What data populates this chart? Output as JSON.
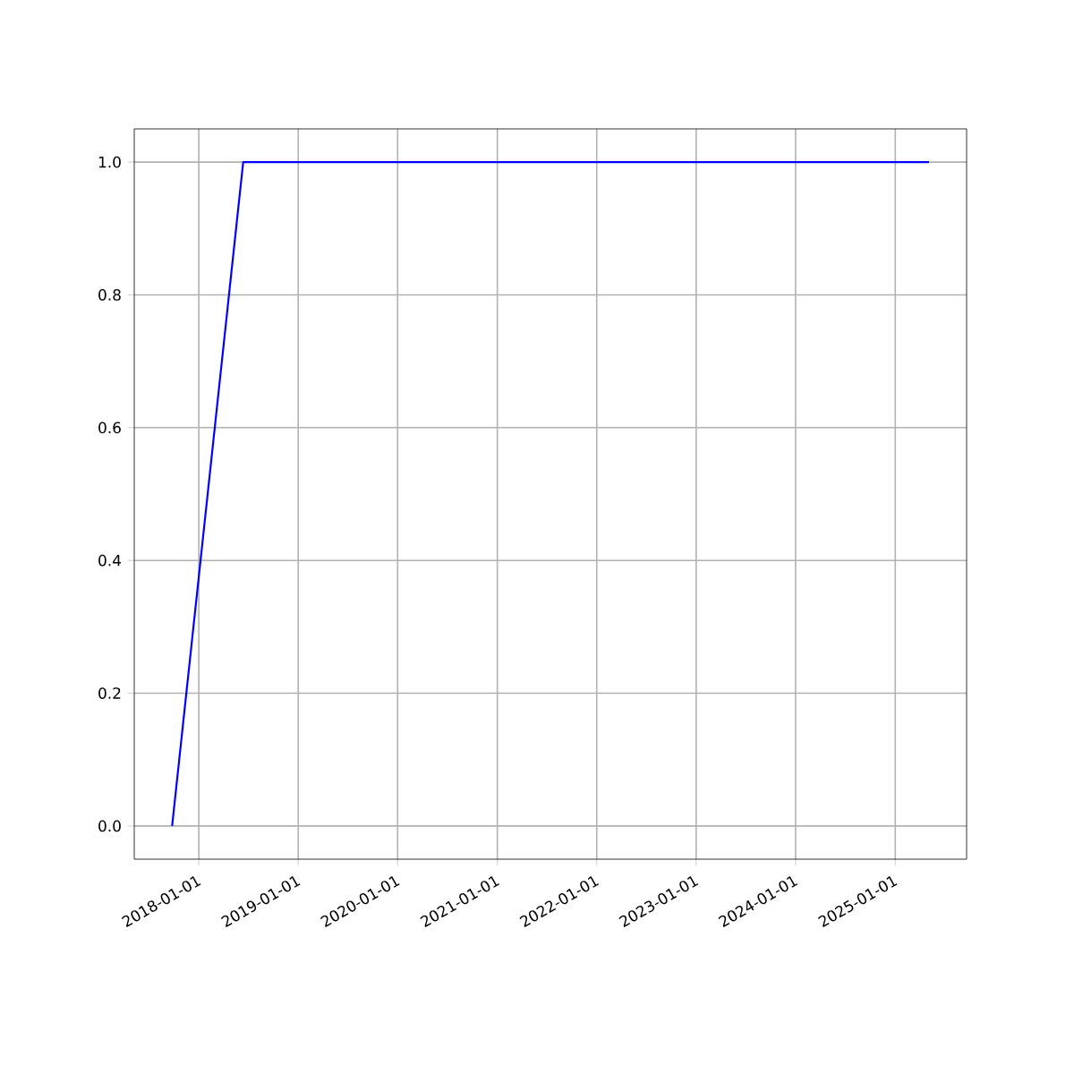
{
  "chart_data": {
    "type": "line",
    "x": [
      "2017-09-25",
      "2018-06-13",
      "2025-05-05"
    ],
    "series": [
      {
        "color": "#0000ff",
        "values": [
          0,
          1,
          1
        ]
      }
    ],
    "xlim": [
      "2017-05-09",
      "2025-09-20"
    ],
    "ylim": [
      -0.05,
      1.05
    ],
    "xticks": [
      {
        "value": "2018-01-01",
        "label": "2018-01-01"
      },
      {
        "value": "2019-01-01",
        "label": "2019-01-01"
      },
      {
        "value": "2020-01-01",
        "label": "2020-01-01"
      },
      {
        "value": "2021-01-01",
        "label": "2021-01-01"
      },
      {
        "value": "2022-01-01",
        "label": "2022-01-01"
      },
      {
        "value": "2023-01-01",
        "label": "2023-01-01"
      },
      {
        "value": "2024-01-01",
        "label": "2024-01-01"
      },
      {
        "value": "2025-01-01",
        "label": "2025-01-01"
      }
    ],
    "yticks": [
      {
        "value": 0,
        "label": "0.0"
      },
      {
        "value": 0.2,
        "label": "0.2"
      },
      {
        "value": 0.4,
        "label": "0.4"
      },
      {
        "value": 0.6,
        "label": "0.6"
      },
      {
        "value": 0.8,
        "label": "0.8"
      },
      {
        "value": 1,
        "label": "1.0"
      }
    ],
    "grid": true,
    "marker": "none",
    "line_style": "solid"
  }
}
